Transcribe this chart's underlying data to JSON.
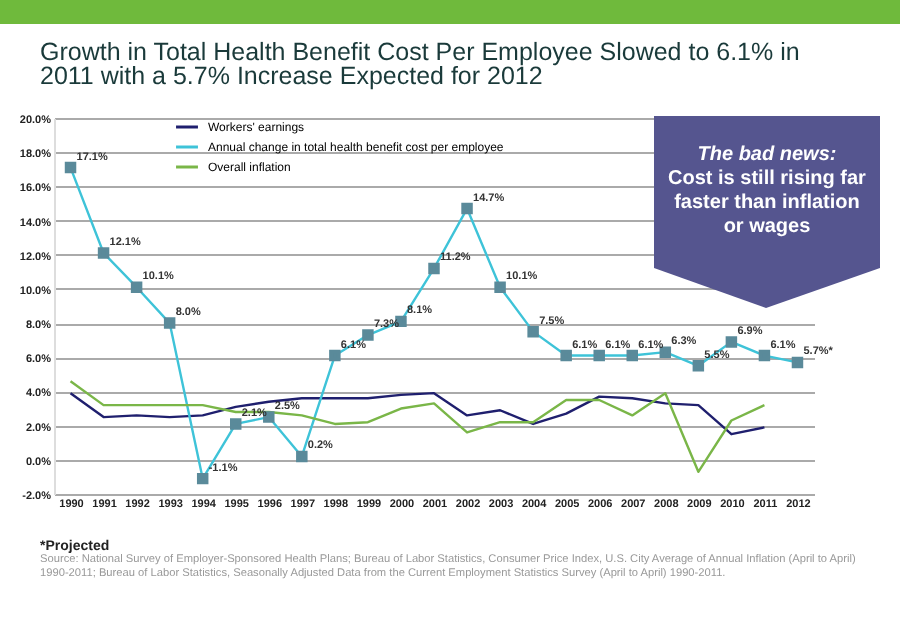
{
  "chart_data": {
    "type": "line",
    "title": "Growth in Total Health Benefit Cost Per Employee Slowed to 6.1% in 2011 with a 5.7% Increase Expected for 2012",
    "categories": [
      "1990",
      "1991",
      "1992",
      "1993",
      "1994",
      "1995",
      "1996",
      "1997",
      "1998",
      "1999",
      "2000",
      "2001",
      "2002",
      "2003",
      "2004",
      "2005",
      "2006",
      "2007",
      "2008",
      "2009",
      "2010",
      "2011",
      "2012"
    ],
    "series": [
      {
        "name": "Workers' earnings",
        "color": "#1f1f6e",
        "values": [
          3.9,
          2.5,
          2.6,
          2.5,
          2.6,
          3.1,
          3.4,
          3.6,
          3.6,
          3.6,
          3.8,
          3.9,
          2.6,
          2.9,
          2.1,
          2.7,
          3.7,
          3.6,
          3.3,
          3.2,
          1.5,
          1.9,
          null
        ]
      },
      {
        "name": "Annual change in total health benefit cost per employee",
        "color": "#3ec3d8",
        "marker": "square",
        "values": [
          17.1,
          12.1,
          10.1,
          8.0,
          -1.1,
          2.1,
          2.5,
          0.2,
          6.1,
          7.3,
          8.1,
          11.2,
          14.7,
          10.1,
          7.5,
          6.1,
          6.1,
          6.1,
          6.3,
          5.5,
          6.9,
          6.1,
          5.7
        ],
        "value_labels": [
          "17.1%",
          "12.1%",
          "10.1%",
          "8.0%",
          "-1.1%",
          "2.1%",
          "2.5%",
          "0.2%",
          "6.1%",
          "7.3%",
          "8.1%",
          "11.2%",
          "14.7%",
          "10.1%",
          "7.5%",
          "6.1%",
          "6.1%",
          "6.1%",
          "6.3%",
          "5.5%",
          "6.9%",
          "6.1%",
          "5.7%*"
        ]
      },
      {
        "name": "Overall inflation",
        "color": "#7ab648",
        "values": [
          4.6,
          3.2,
          3.2,
          3.2,
          3.2,
          2.8,
          2.8,
          2.6,
          2.1,
          2.2,
          3.0,
          3.3,
          1.6,
          2.2,
          2.2,
          3.5,
          3.5,
          2.6,
          3.9,
          -0.7,
          2.3,
          3.2,
          null
        ]
      }
    ],
    "ylim": [
      -2,
      20
    ],
    "yticks": [
      {
        "value": -2,
        "label": "-2.0%"
      },
      {
        "value": 0,
        "label": "0.0%"
      },
      {
        "value": 2,
        "label": "2.0%"
      },
      {
        "value": 4,
        "label": "4.0%"
      },
      {
        "value": 6,
        "label": "6.0%"
      },
      {
        "value": 8,
        "label": "8.0%"
      },
      {
        "value": 10,
        "label": "10.0%"
      },
      {
        "value": 12,
        "label": "12.0%"
      },
      {
        "value": 14,
        "label": "14.0%"
      },
      {
        "value": 16,
        "label": "16.0%"
      },
      {
        "value": 18,
        "label": "18.0%"
      },
      {
        "value": 20,
        "label": "20.0%"
      }
    ],
    "grid": "y",
    "legend": "top left",
    "line_style": "solid",
    "annotations": [
      "The bad news:",
      "Cost is still rising far faster than inflation or wages",
      "*Projected",
      "Source: National Survey of Employer-Sponsored Health Plans; Bureau of Labor Statistics, Consumer Price Index, U.S. City Average of Annual Inflation (April to April) 1990-2011; Bureau of Labor Statistics, Seasonally Adjusted Data from the Current Employment Statistics Survey (April to April) 1990-2011."
    ]
  }
}
